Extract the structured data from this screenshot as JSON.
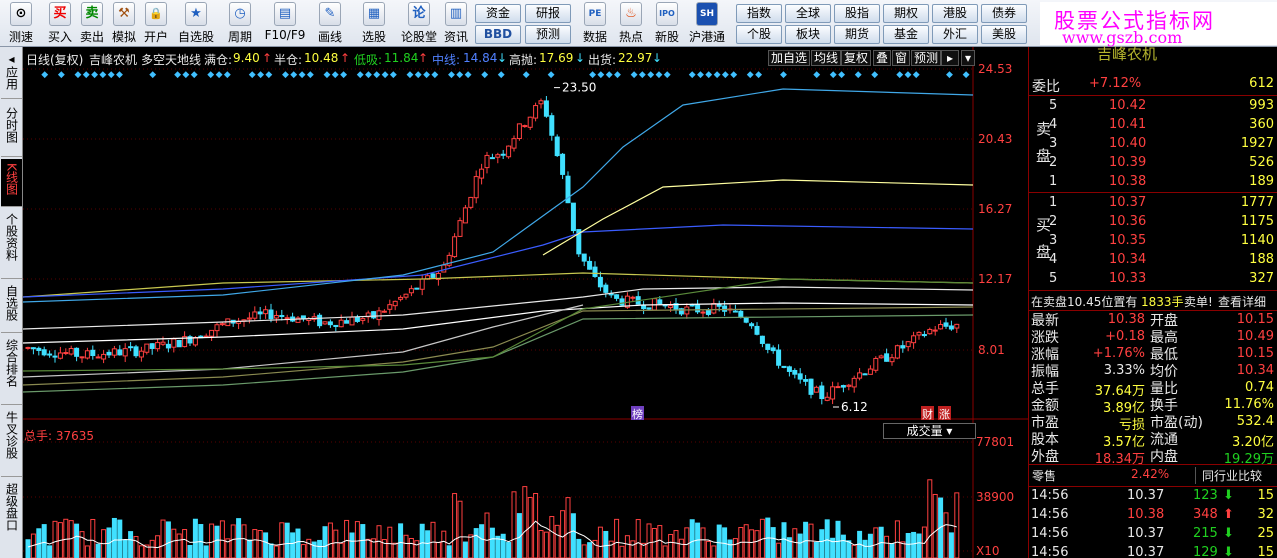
{
  "toolbar": {
    "buttons": [
      {
        "label": "测速",
        "icon": "clock-icon",
        "glyph": "⊙"
      },
      {
        "label": "买入",
        "icon": "buy-icon",
        "glyph": "买"
      },
      {
        "label": "卖出",
        "icon": "sell-icon",
        "glyph": "卖"
      },
      {
        "label": "模拟",
        "icon": "gavel-icon",
        "glyph": "⚒"
      },
      {
        "label": "开户",
        "icon": "lock-icon",
        "glyph": "🔒"
      },
      {
        "label": "自选股",
        "icon": "star-icon",
        "glyph": "★"
      },
      {
        "label": "周期",
        "icon": "cycle-icon",
        "glyph": "◷"
      },
      {
        "label": "F10/F9",
        "icon": "f10-icon",
        "glyph": "▤"
      },
      {
        "label": "画线",
        "icon": "pen-icon",
        "glyph": "✎"
      },
      {
        "label": "选股",
        "icon": "screen-icon",
        "glyph": "▦"
      },
      {
        "label": "论股堂",
        "icon": "forum-icon",
        "glyph": "论"
      },
      {
        "label": "资讯",
        "icon": "news-icon",
        "glyph": "▥"
      },
      {
        "label": "数据",
        "icon": "pe-icon",
        "glyph": "PE"
      },
      {
        "label": "热点",
        "icon": "fire-icon",
        "glyph": "♨"
      },
      {
        "label": "新股",
        "icon": "ipo-icon",
        "glyph": "IPO"
      },
      {
        "label": "沪港通",
        "icon": "sse-hke-icon",
        "glyph": "SH"
      }
    ],
    "grid_buttons": [
      [
        "资金",
        "研报"
      ],
      [
        "BBD",
        "预测"
      ],
      [
        "指数",
        "全球",
        "股指",
        "期权",
        "港股",
        "债券"
      ],
      [
        "个股",
        "板块",
        "期货",
        "基金",
        "外汇",
        "美股"
      ]
    ],
    "ad_title": "股票公式指标网",
    "ad_url": "www.gszb.com"
  },
  "left_tabs": [
    {
      "label": "应用",
      "icon": "arrow-left-icon"
    },
    {
      "label": "分时图"
    },
    {
      "label": "K线图",
      "active": true
    },
    {
      "label": "个股资料"
    },
    {
      "label": "自选股"
    },
    {
      "label": "综合排名"
    },
    {
      "label": "牛叉诊股"
    },
    {
      "label": "超级盘口"
    }
  ],
  "chart_header": {
    "period": "日线(复权)",
    "stock": "吉峰农机",
    "indicator": "多空天地线",
    "full_pos_label": "满仓:",
    "full_pos_value": "9.40",
    "half_pos_label": "半仓:",
    "half_pos_value": "10.48",
    "low_buy_label": "低吸:",
    "low_buy_value": "11.84",
    "mid_label": "中线:",
    "mid_value": "14.84",
    "high_sell_label": "高抛:",
    "high_sell_value": "17.69",
    "ship_label": "出货:",
    "ship_value": "22.97",
    "buttons": [
      "加自选",
      "均线",
      "复权",
      "叠",
      "窗",
      "预测"
    ]
  },
  "chart_data": {
    "type": "candlestick",
    "y_ticks": [
      "24.53",
      "20.43",
      "16.27",
      "12.17",
      "8.01"
    ],
    "y_range": [
      6.12,
      24.53
    ],
    "annotations": {
      "high": "23.50",
      "low": "6.12"
    },
    "event_labels": [
      "榜",
      "财",
      "涨"
    ],
    "volume": {
      "label": "总手: 37635",
      "selector": "成交量",
      "y_ticks": [
        "77801",
        "38900",
        "X10"
      ]
    }
  },
  "quote": {
    "stock_name_partial": "吉峰农机",
    "wei_bi_label": "委比",
    "wei_bi": "+7.12%",
    "wei_cha": "612",
    "sell_label": "卖盘",
    "buy_label": "买盘",
    "asks": [
      {
        "level": "5",
        "price": "10.42",
        "vol": "993"
      },
      {
        "level": "4",
        "price": "10.41",
        "vol": "360"
      },
      {
        "level": "3",
        "price": "10.40",
        "vol": "1927"
      },
      {
        "level": "2",
        "price": "10.39",
        "vol": "526"
      },
      {
        "level": "1",
        "price": "10.38",
        "vol": "189"
      }
    ],
    "bids": [
      {
        "level": "1",
        "price": "10.37",
        "vol": "1777"
      },
      {
        "level": "2",
        "price": "10.36",
        "vol": "1175"
      },
      {
        "level": "3",
        "price": "10.35",
        "vol": "1140"
      },
      {
        "level": "4",
        "price": "10.34",
        "vol": "188"
      },
      {
        "level": "5",
        "price": "10.33",
        "vol": "327"
      }
    ],
    "notice_a": "在卖盘10.45位置有",
    "notice_vol": "1833手",
    "notice_b": "卖单!",
    "notice_link": "查看详细",
    "stats": [
      [
        "最新",
        "10.38",
        "开盘",
        "10.15"
      ],
      [
        "涨跌",
        "+0.18",
        "最高",
        "10.49"
      ],
      [
        "涨幅",
        "+1.76%",
        "最低",
        "10.15"
      ],
      [
        "振幅",
        "3.33%",
        "均价",
        "10.34"
      ],
      [
        "总手",
        "37.64万",
        "量比",
        "0.74"
      ],
      [
        "金额",
        "3.89亿",
        "换手",
        "11.76%"
      ],
      [
        "市盈",
        "亏损",
        "市盈(动)",
        "532.4"
      ],
      [
        "股本",
        "3.57亿",
        "流通",
        "3.20亿"
      ],
      [
        "外盘",
        "18.34万",
        "内盘",
        "19.29万"
      ]
    ],
    "sector_label": "零售",
    "sector_change": "2.42%",
    "compare_label": "同行业比较",
    "ticks": [
      {
        "time": "14:56",
        "price": "10.37",
        "vol": "123",
        "dir": "down",
        "n": "15"
      },
      {
        "time": "14:56",
        "price": "10.38",
        "vol": "348",
        "dir": "up",
        "n": "32"
      },
      {
        "time": "14:56",
        "price": "10.37",
        "vol": "215",
        "dir": "down",
        "n": "25"
      },
      {
        "time": "14:56",
        "price": "10.37",
        "vol": "129",
        "dir": "down",
        "n": "15"
      }
    ],
    "colors": {
      "up": "#ff4040",
      "down": "#20d020",
      "neutral": "#e8e8e8",
      "accent": "#ffff40",
      "cyan": "#40e0ff"
    }
  }
}
